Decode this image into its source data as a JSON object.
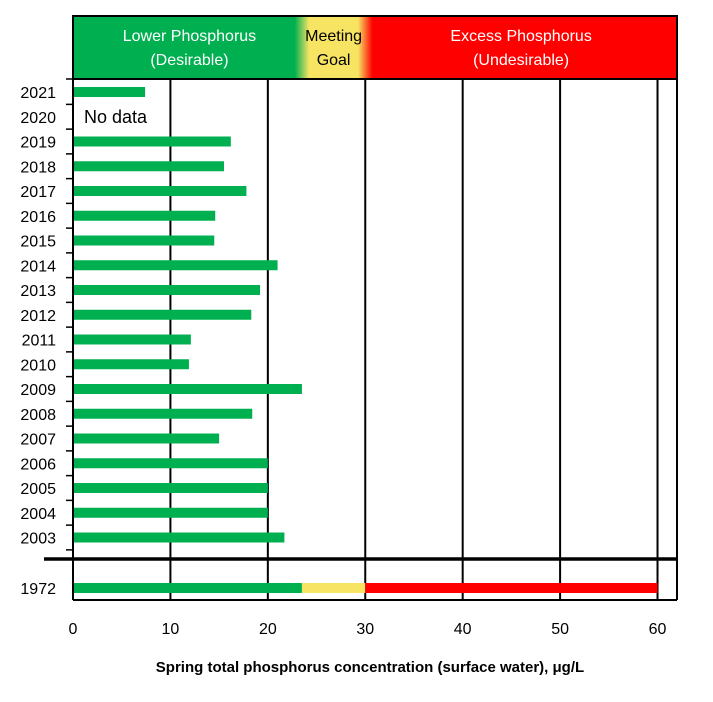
{
  "chart_data": {
    "type": "bar",
    "orientation": "horizontal",
    "xlabel": "Spring total phosphorus concentration (surface water), μg/L",
    "xlim": [
      0,
      62
    ],
    "xticks": [
      0,
      10,
      20,
      30,
      40,
      50,
      60
    ],
    "grid": true,
    "bar_color": "#00b050",
    "categories": [
      "2021",
      "2020",
      "2019",
      "2018",
      "2017",
      "2016",
      "2015",
      "2014",
      "2013",
      "2012",
      "2011",
      "2010",
      "2009",
      "2008",
      "2007",
      "2006",
      "2005",
      "2004",
      "2003"
    ],
    "values": [
      7.4,
      null,
      16.2,
      15.5,
      17.8,
      14.6,
      14.5,
      21.0,
      19.2,
      18.3,
      12.1,
      11.9,
      23.5,
      18.4,
      15.0,
      20.0,
      20.0,
      20.0,
      21.7
    ],
    "annotation": "No data",
    "reference": {
      "category": "1972",
      "value": 60,
      "segments": [
        {
          "from": 0,
          "to": 23.5,
          "color": "#00b050"
        },
        {
          "from": 23.5,
          "to": 30,
          "color": "#f7e463"
        },
        {
          "from": 30,
          "to": 60,
          "color": "#ff0000"
        }
      ]
    },
    "bands": [
      {
        "line1": "Lower Phosphorus",
        "line2": "(Desirable)",
        "from": 0,
        "to": 23.5,
        "color": "#00b050"
      },
      {
        "line1": "Meeting",
        "line2": "Goal",
        "from": 23.5,
        "to": 30,
        "color": "#f7e463"
      },
      {
        "line1": "Excess Phosphorus",
        "line2": "(Undesirable)",
        "from": 30,
        "to": 62,
        "color": "#ff0000"
      }
    ]
  }
}
